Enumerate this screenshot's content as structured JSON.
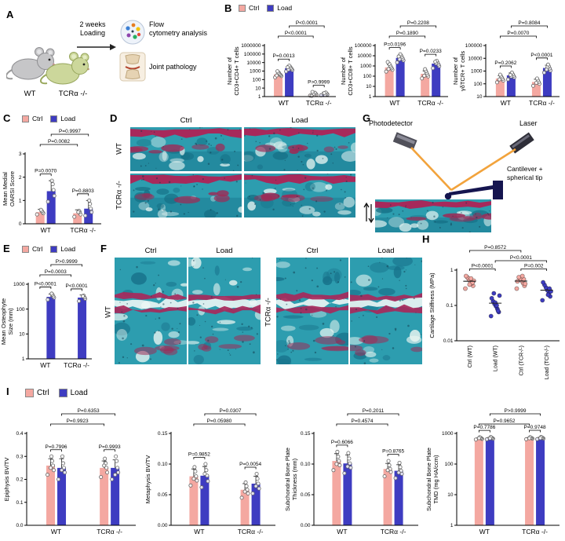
{
  "colors": {
    "ctrl": "#F4A8A1",
    "load": "#3E3CC1"
  },
  "legend": {
    "ctrl": "Ctrl",
    "load": "Load"
  },
  "panelA": {
    "label": "A",
    "loading1": "2 weeks",
    "loading2": "Loading",
    "wt": "WT",
    "tcr": "TCRα -/-",
    "flow1": "Flow",
    "flow2": "cytometry analysis",
    "joint": "Joint pathology"
  },
  "panelB": {
    "label": "B"
  },
  "panelC": {
    "label": "C"
  },
  "panelD": {
    "label": "D",
    "cols": [
      "Ctrl",
      "Load"
    ],
    "rows": [
      "WT",
      "TCRα -/-"
    ]
  },
  "panelE": {
    "label": "E"
  },
  "panelF": {
    "label": "F",
    "cols": [
      "Ctrl",
      "Load",
      "Ctrl",
      "Load"
    ],
    "rows": [
      "WT",
      "TCRα -/-"
    ]
  },
  "panelG": {
    "label": "G",
    "photodetector": "Photodetector",
    "laser": "Laser",
    "cant1": "Cantilever +",
    "cant2": "spherical tip"
  },
  "panelH": {
    "label": "H"
  },
  "panelI": {
    "label": "I"
  },
  "chart_data": [
    {
      "id": "b1",
      "type": "bar",
      "yscale": "log",
      "ylabel": [
        "Number of",
        "CD3+CD4+ T cells"
      ],
      "ylim": [
        1,
        1000000
      ],
      "yticks": [
        1,
        10,
        100,
        1000,
        10000,
        100000,
        1000000
      ],
      "ytick_labels": [
        "1",
        "10",
        "100",
        "1000",
        "10000",
        "100000",
        "1000000"
      ],
      "groups": [
        "WT",
        "TCRα -/-"
      ],
      "series": [
        {
          "name": "Ctrl",
          "values": [
            420,
            2.1
          ],
          "err": [
            350,
            1.2
          ],
          "points": [
            [
              180,
              260,
              340,
              420,
              520,
              700,
              950,
              300
            ],
            [
              1.3,
              1.7,
              2.2,
              2.8,
              1.5,
              2,
              3.5,
              1.2
            ]
          ]
        },
        {
          "name": "Load",
          "values": [
            2100,
            2.1
          ],
          "err": [
            1400,
            1.1
          ],
          "points": [
            [
              900,
              1300,
              1800,
              2400,
              3200,
              4200,
              1500,
              2800
            ],
            [
              1.4,
              1.8,
              2.3,
              3,
              1.6,
              2.6
            ]
          ]
        }
      ],
      "brackets": [
        {
          "label": "P<0.0001",
          "from": 1,
          "to": 3,
          "row": 0
        },
        {
          "label": "P<0.0001",
          "from": 0,
          "to": 2,
          "row": 1
        },
        {
          "label": "P=0.0013",
          "from": 0,
          "to": 1
        },
        {
          "label": "P>0.9999",
          "from": 2,
          "to": 3
        }
      ]
    },
    {
      "id": "b2",
      "type": "bar",
      "yscale": "log",
      "ylabel": [
        "Number of",
        "CD3+CD8+ T cells"
      ],
      "ylim": [
        1,
        100000
      ],
      "yticks": [
        1,
        10,
        100,
        1000,
        10000,
        100000
      ],
      "ytick_labels": [
        "1",
        "10",
        "100",
        "1000",
        "10000",
        "100000"
      ],
      "groups": [
        "WT",
        "TCRα -/-"
      ],
      "series": [
        {
          "name": "Ctrl",
          "values": [
            720,
            170
          ],
          "err": [
            600,
            160
          ],
          "points": [
            [
              280,
              420,
              600,
              800,
              1100,
              1600,
              500,
              2400
            ],
            [
              60,
              95,
              140,
              210,
              320,
              480,
              110
            ]
          ]
        },
        {
          "name": "Load",
          "values": [
            6200,
            1700
          ],
          "err": [
            4200,
            1100
          ],
          "points": [
            [
              2200,
              3500,
              5200,
              7500,
              10500,
              14000,
              4500,
              8500
            ],
            [
              600,
              950,
              1400,
              2100,
              3100,
              1800,
              2600
            ]
          ]
        }
      ],
      "brackets": [
        {
          "label": "P=0.2208",
          "from": 1,
          "to": 3,
          "row": 0
        },
        {
          "label": "P=0.1890",
          "from": 0,
          "to": 2,
          "row": 1
        },
        {
          "label": "P=0.0196",
          "from": 0,
          "to": 1
        },
        {
          "label": "P=0.0233",
          "from": 2,
          "to": 3
        }
      ]
    },
    {
      "id": "b3",
      "type": "bar",
      "yscale": "log",
      "ylabel": [
        "Number of",
        "γδTCR+ T cells"
      ],
      "ylim": [
        10,
        100000
      ],
      "yticks": [
        10,
        100,
        1000,
        10000,
        100000
      ],
      "ytick_labels": [
        "10",
        "100",
        "1000",
        "10000",
        "100000"
      ],
      "groups": [
        "WT",
        "TCRα -/-"
      ],
      "series": [
        {
          "name": "Ctrl",
          "values": [
            260,
            140
          ],
          "err": [
            180,
            90
          ],
          "points": [
            [
              130,
              180,
              240,
              310,
              400,
              520,
              220
            ],
            [
              70,
              100,
              140,
              190,
              260,
              120
            ]
          ]
        },
        {
          "name": "Load",
          "values": [
            460,
            1750
          ],
          "err": [
            260,
            1100
          ],
          "points": [
            [
              220,
              320,
              430,
              560,
              750,
              380,
              500
            ],
            [
              750,
              1100,
              1600,
              2300,
              3200,
              1900,
              1300
            ]
          ]
        }
      ],
      "brackets": [
        {
          "label": "P=0.8084",
          "from": 1,
          "to": 3,
          "row": 0
        },
        {
          "label": "P=0.0070",
          "from": 0,
          "to": 2,
          "row": 1
        },
        {
          "label": "P=0.2062",
          "from": 0,
          "to": 1
        },
        {
          "label": "P<0.0001",
          "from": 2,
          "to": 3
        }
      ]
    },
    {
      "id": "c",
      "type": "bar",
      "yscale": "linear",
      "ylabel": [
        "Mean Medial",
        "OARSI Score"
      ],
      "ylim": [
        0,
        3
      ],
      "yticks": [
        0,
        1,
        2,
        3
      ],
      "ytick_labels": [
        "0",
        "1",
        "2",
        "3"
      ],
      "groups": [
        "WT",
        "TCRα -/-"
      ],
      "series": [
        {
          "name": "Ctrl",
          "values": [
            0.5,
            0.45
          ],
          "err": [
            0.12,
            0.15
          ],
          "points": [
            [
              0.4,
              0.45,
              0.5,
              0.55,
              0.6
            ],
            [
              0.3,
              0.4,
              0.5,
              0.55,
              0.5
            ]
          ]
        },
        {
          "name": "Load",
          "values": [
            1.4,
            0.65
          ],
          "err": [
            0.45,
            0.35
          ],
          "points": [
            [
              0.95,
              1.2,
              1.45,
              1.7,
              1.85
            ],
            [
              0.35,
              0.5,
              0.65,
              0.85,
              1.0
            ]
          ]
        }
      ],
      "brackets": [
        {
          "label": "P=0.9997",
          "from": 1,
          "to": 3,
          "row": 0
        },
        {
          "label": "P=0.0082",
          "from": 0,
          "to": 2,
          "row": 1
        },
        {
          "label": "P=0.0070",
          "from": 0,
          "to": 1
        },
        {
          "label": "P=0.8803",
          "from": 2,
          "to": 3
        }
      ]
    },
    {
      "id": "e",
      "type": "bar",
      "yscale": "log",
      "ylabel": [
        "Mean Osteophyte",
        "Size (mm)"
      ],
      "ylim": [
        1,
        1000
      ],
      "yticks": [
        1,
        10,
        100,
        1000
      ],
      "ytick_labels": [
        "1",
        "10",
        "100",
        "1000"
      ],
      "groups": [
        "WT",
        "TCRα -/-"
      ],
      "series": [
        {
          "name": "Ctrl",
          "values": [
            1,
            1
          ],
          "err": [
            0,
            0
          ],
          "points": [
            [],
            []
          ]
        },
        {
          "name": "Load",
          "values": [
            310,
            290
          ],
          "err": [
            90,
            80
          ],
          "points": [
            [
              240,
              290,
              330,
              380,
              420
            ],
            [
              210,
              260,
              300,
              350,
              330
            ]
          ]
        }
      ],
      "brackets": [
        {
          "label": "P>0.9999",
          "from": 1,
          "to": 3,
          "row": 0
        },
        {
          "label": "P=0.0003",
          "from": 0,
          "to": 2,
          "row": 1
        },
        {
          "label": "P<0.0001",
          "from": 0,
          "to": 1
        },
        {
          "label": "P<0.0001",
          "from": 2,
          "to": 3
        }
      ]
    },
    {
      "id": "h",
      "type": "scatter",
      "yscale": "log",
      "ylabel": [
        "Cartilage Stiffness (MPa)"
      ],
      "ylim": [
        0.01,
        1
      ],
      "yticks": [
        0.01,
        0.1,
        1
      ],
      "ytick_labels": [
        "0.01",
        "0.1",
        "1"
      ],
      "categories": [
        "Ctrl (WT)",
        "Load (WT)",
        "Ctrl (TCR-/-)",
        "Load (TCR-/-)"
      ],
      "cat_colors": [
        "ctrl",
        "load",
        "ctrl",
        "load"
      ],
      "points": [
        [
          0.3,
          0.36,
          0.42,
          0.48,
          0.55,
          0.62,
          0.68,
          0.5,
          0.44,
          0.58,
          0.39
        ],
        [
          0.05,
          0.065,
          0.08,
          0.095,
          0.11,
          0.13,
          0.16,
          0.19,
          0.07,
          0.1,
          0.12,
          0.22
        ],
        [
          0.3,
          0.36,
          0.43,
          0.5,
          0.57,
          0.63,
          0.48,
          0.41,
          0.55,
          0.68
        ],
        [
          0.14,
          0.18,
          0.22,
          0.27,
          0.32,
          0.38,
          0.45,
          0.25,
          0.3,
          0.2
        ]
      ],
      "brackets": [
        {
          "label": "P=0.8572",
          "from": 0,
          "to": 2,
          "row": 0
        },
        {
          "label": "P<0.0001",
          "from": 1,
          "to": 3,
          "row": 1
        },
        {
          "label": "P<0.0001",
          "from": 0,
          "to": 1
        },
        {
          "label": "P=0.002",
          "from": 2,
          "to": 3
        }
      ]
    },
    {
      "id": "i1",
      "type": "bar",
      "yscale": "linear",
      "ylabel": [
        "Epiphysis BV/TV"
      ],
      "ylim": [
        0,
        0.4
      ],
      "yticks": [
        0,
        0.1,
        0.2,
        0.3,
        0.4
      ],
      "ytick_labels": [
        "0.0",
        "0.1",
        "0.2",
        "0.3",
        "0.4"
      ],
      "groups": [
        "WT",
        "TCRα -/-"
      ],
      "series": [
        {
          "name": "Ctrl",
          "values": [
            0.26,
            0.25
          ],
          "err": [
            0.03,
            0.03
          ],
          "points": [
            [
              0.22,
              0.24,
              0.26,
              0.28,
              0.3,
              0.25
            ],
            [
              0.21,
              0.23,
              0.25,
              0.27,
              0.29,
              0.26
            ]
          ]
        },
        {
          "name": "Load",
          "values": [
            0.25,
            0.25
          ],
          "err": [
            0.04,
            0.035
          ],
          "points": [
            [
              0.2,
              0.23,
              0.25,
              0.27,
              0.3,
              0.24
            ],
            [
              0.2,
              0.23,
              0.25,
              0.28,
              0.3,
              0.22
            ]
          ]
        }
      ],
      "brackets": [
        {
          "label": "P=0.6353",
          "from": 1,
          "to": 3,
          "row": 0
        },
        {
          "label": "P=0.9923",
          "from": 0,
          "to": 2,
          "row": 1
        },
        {
          "label": "P=0.7996",
          "from": 0,
          "to": 1
        },
        {
          "label": "P=0.9993",
          "from": 2,
          "to": 3
        }
      ]
    },
    {
      "id": "i2",
      "type": "bar",
      "yscale": "linear",
      "ylabel": [
        "Metaphysis BV/TV"
      ],
      "ylim": [
        0,
        0.15
      ],
      "yticks": [
        0,
        0.05,
        0.1,
        0.15
      ],
      "ytick_labels": [
        "0.00",
        "0.05",
        "0.10",
        "0.15"
      ],
      "groups": [
        "WT",
        "TCRα -/-"
      ],
      "series": [
        {
          "name": "Ctrl",
          "values": [
            0.08,
            0.058
          ],
          "err": [
            0.012,
            0.01
          ],
          "points": [
            [
              0.065,
              0.073,
              0.08,
              0.088,
              0.095,
              0.076
            ],
            [
              0.045,
              0.052,
              0.058,
              0.064,
              0.07,
              0.055
            ]
          ]
        },
        {
          "name": "Load",
          "values": [
            0.081,
            0.068
          ],
          "err": [
            0.015,
            0.012
          ],
          "points": [
            [
              0.062,
              0.072,
              0.081,
              0.09,
              0.1,
              0.084
            ],
            [
              0.052,
              0.06,
              0.068,
              0.076,
              0.084,
              0.064
            ]
          ]
        }
      ],
      "brackets": [
        {
          "label": "P=0.0307",
          "from": 1,
          "to": 3,
          "row": 0
        },
        {
          "label": "P=0.05980",
          "from": 0,
          "to": 2,
          "row": 1
        },
        {
          "label": "P=0.9852",
          "from": 0,
          "to": 1
        },
        {
          "label": "P=0.0054",
          "from": 2,
          "to": 3
        }
      ]
    },
    {
      "id": "i3",
      "type": "bar",
      "yscale": "linear",
      "ylabel": [
        "Subchondral Bone Plate",
        "Thickness (mm)"
      ],
      "ylim": [
        0,
        0.15
      ],
      "yticks": [
        0,
        0.05,
        0.1,
        0.15
      ],
      "ytick_labels": [
        "0.00",
        "0.05",
        "0.10",
        "0.15"
      ],
      "groups": [
        "WT",
        "TCRα -/-"
      ],
      "series": [
        {
          "name": "Ctrl",
          "values": [
            0.105,
            0.092
          ],
          "err": [
            0.012,
            0.009
          ],
          "points": [
            [
              0.09,
              0.098,
              0.105,
              0.112,
              0.12,
              0.1
            ],
            [
              0.08,
              0.087,
              0.092,
              0.098,
              0.105,
              0.09
            ]
          ]
        },
        {
          "name": "Load",
          "values": [
            0.101,
            0.089
          ],
          "err": [
            0.014,
            0.01
          ],
          "points": [
            [
              0.085,
              0.094,
              0.101,
              0.109,
              0.118,
              0.096
            ],
            [
              0.077,
              0.084,
              0.089,
              0.095,
              0.102,
              0.086
            ]
          ]
        }
      ],
      "brackets": [
        {
          "label": "P=0.2011",
          "from": 1,
          "to": 3,
          "row": 0
        },
        {
          "label": "P=0.4574",
          "from": 0,
          "to": 2,
          "row": 1
        },
        {
          "label": "P=0.6066",
          "from": 0,
          "to": 1
        },
        {
          "label": "P=0.8765",
          "from": 2,
          "to": 3
        }
      ]
    },
    {
      "id": "i4",
      "type": "bar",
      "yscale": "log",
      "ylabel": [
        "Subchondral Bone Plate",
        "TMD (mg HA/ccm)"
      ],
      "ylim": [
        1,
        1000
      ],
      "yticks": [
        1,
        10,
        100,
        1000
      ],
      "ytick_labels": [
        "1",
        "10",
        "100",
        "1000"
      ],
      "groups": [
        "WT",
        "TCRα -/-"
      ],
      "series": [
        {
          "name": "Ctrl",
          "values": [
            690,
            700
          ],
          "err": [
            40,
            40
          ],
          "points": [
            [
              630,
              660,
              690,
              720,
              750,
              700
            ],
            [
              645,
              675,
              700,
              725,
              755,
              695
            ]
          ]
        },
        {
          "name": "Load",
          "values": [
            700,
            710
          ],
          "err": [
            45,
            40
          ],
          "points": [
            [
              640,
              670,
              700,
              730,
              760,
              690
            ],
            [
              650,
              680,
              710,
              735,
              765,
              700
            ]
          ]
        }
      ],
      "brackets": [
        {
          "label": "P>0.9999",
          "from": 1,
          "to": 3,
          "row": 0
        },
        {
          "label": "P=0.9652",
          "from": 0,
          "to": 2,
          "row": 1
        },
        {
          "label": "P=0.7786",
          "from": 0,
          "to": 1
        },
        {
          "label": "P=0.9748",
          "from": 2,
          "to": 3
        }
      ]
    }
  ]
}
